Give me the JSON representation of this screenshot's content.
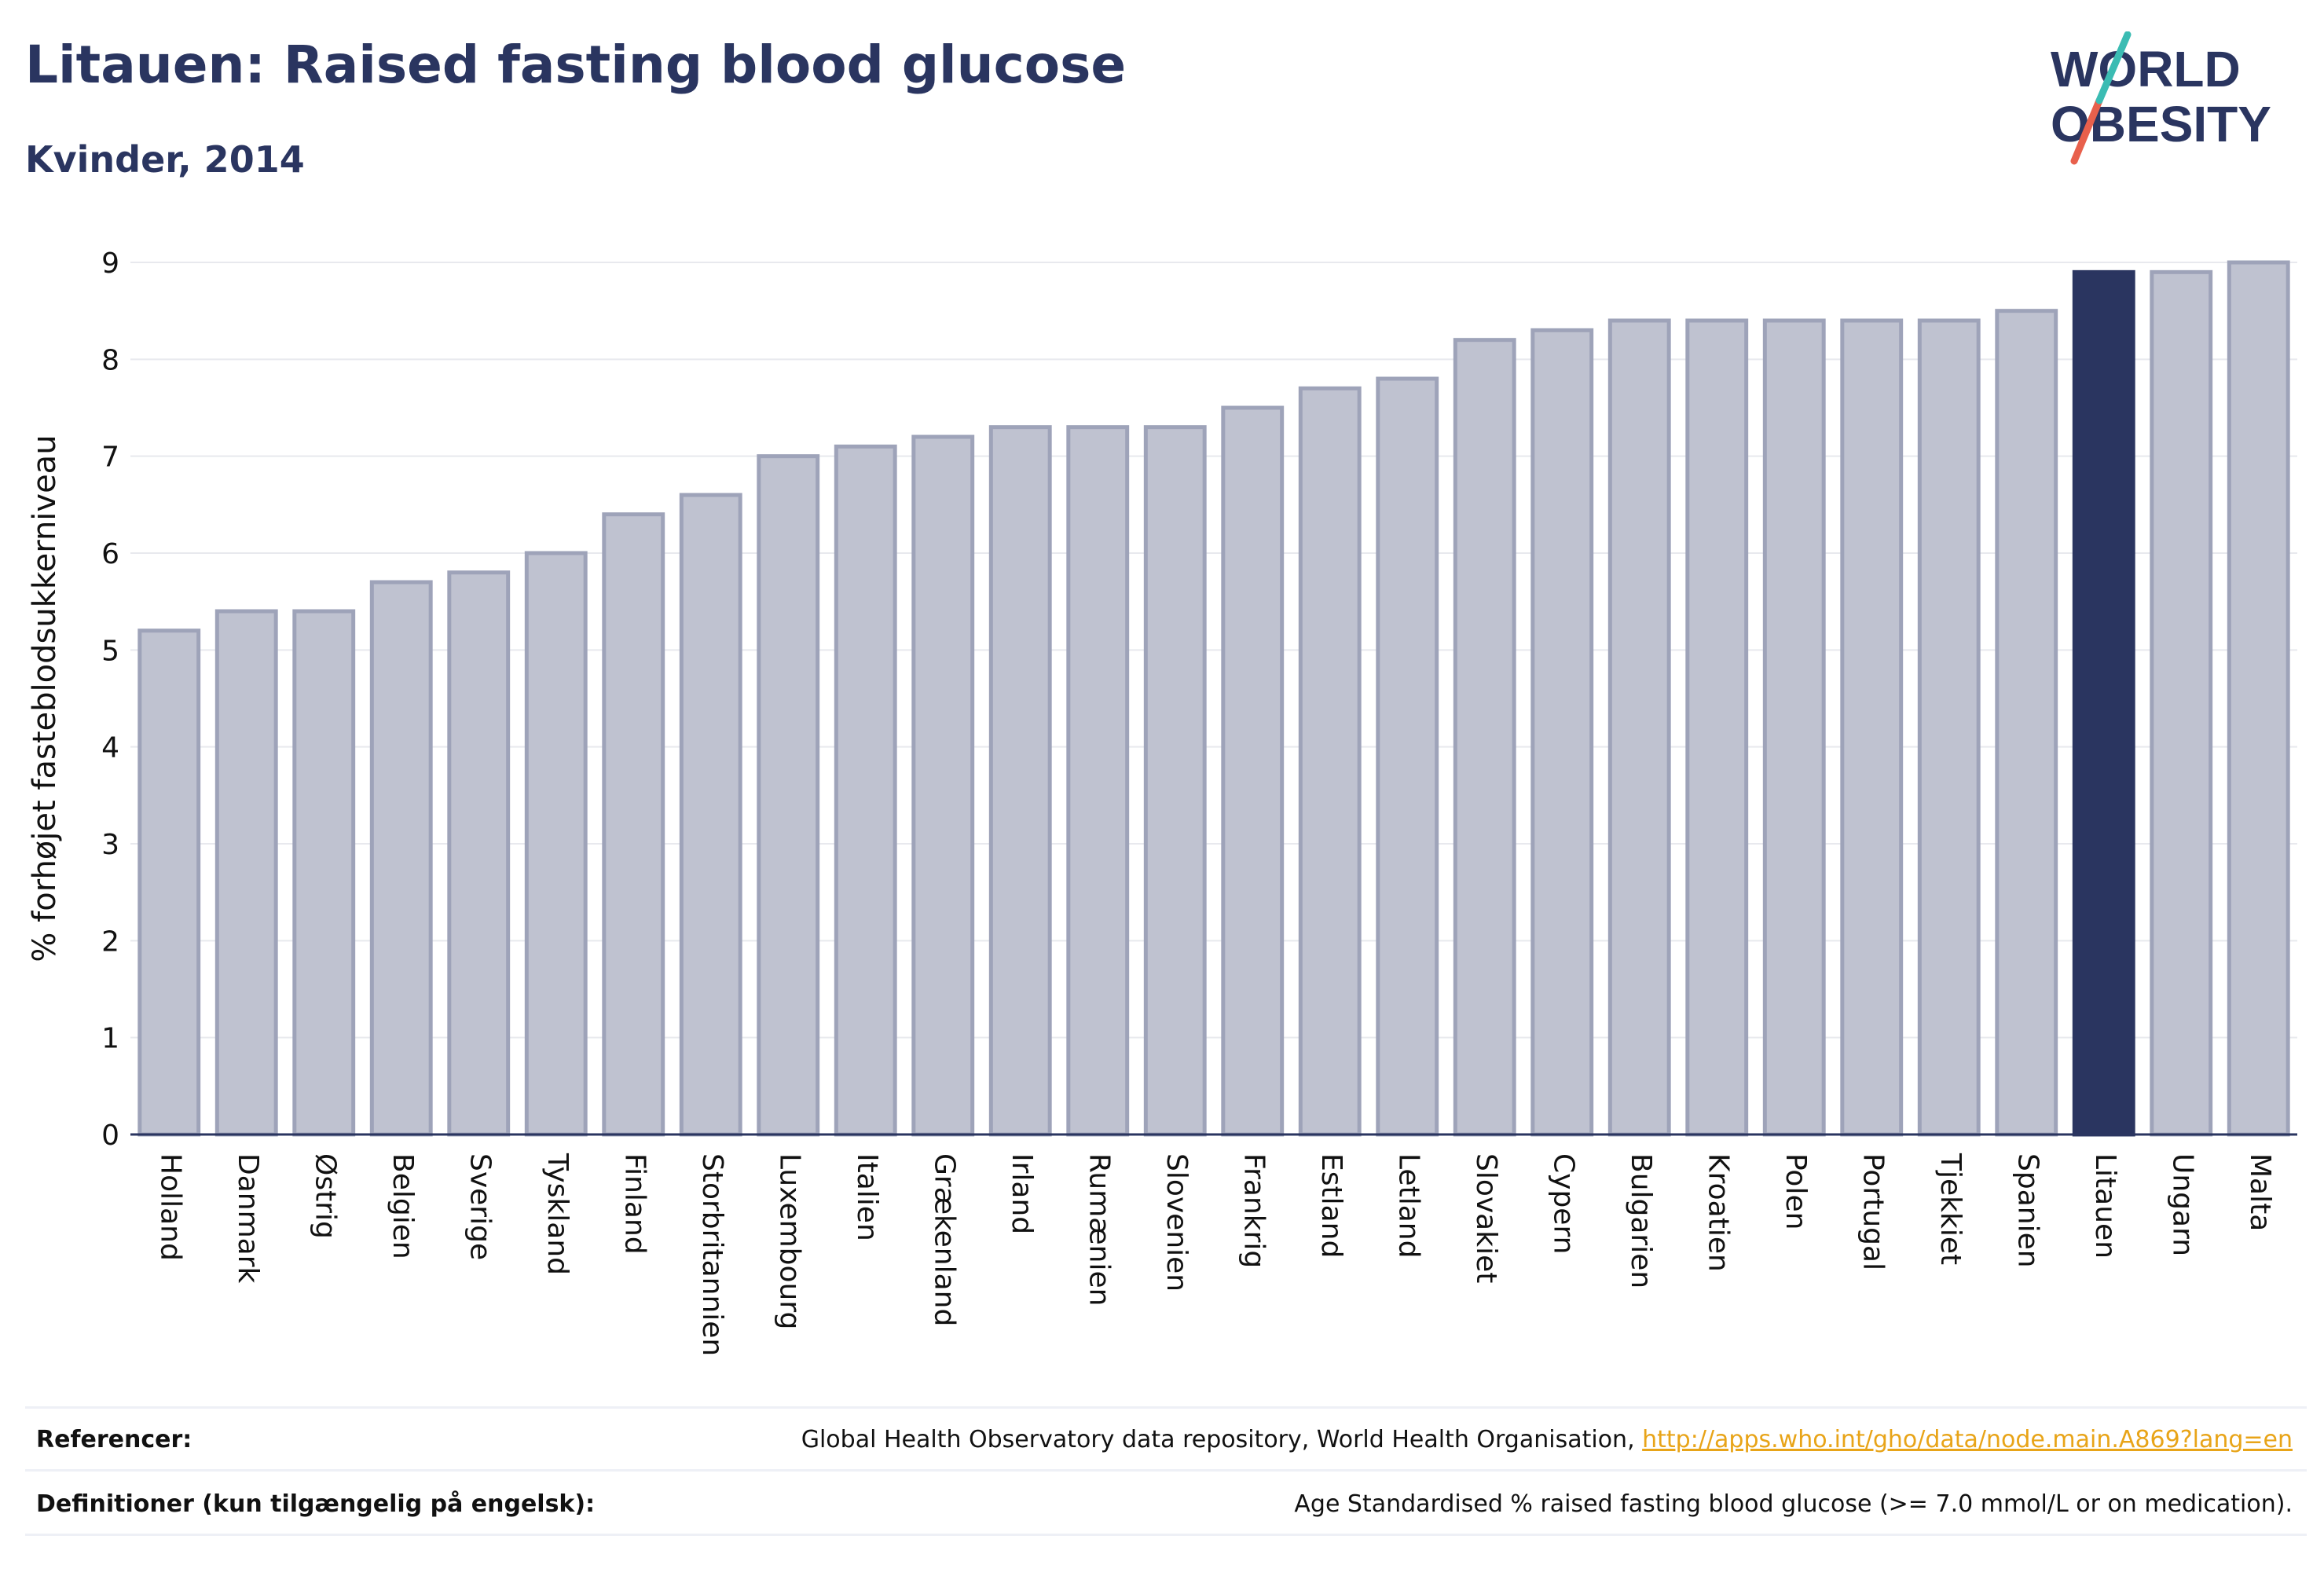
{
  "header": {
    "title": "Litauen: Raised fasting blood glucose",
    "subtitle": "Kvinder, 2014"
  },
  "logo": {
    "line1": "WORLD",
    "line2": "OBESITY",
    "colors": {
      "text": "#2a3560",
      "slash_red": "#e8604c",
      "slash_teal": "#3bbcb3"
    }
  },
  "chart_data": {
    "type": "bar",
    "title": "Litauen: Raised fasting blood glucose",
    "subtitle": "Kvinder, 2014",
    "xlabel": "",
    "ylabel": "% forhøjet fasteblodsukkerniveau",
    "ylim": [
      0,
      9
    ],
    "yticks": [
      0,
      1,
      2,
      3,
      4,
      5,
      6,
      7,
      8,
      9
    ],
    "grid": true,
    "highlight": "Litauen",
    "colors": {
      "bar": "#bfc2d0",
      "bar_edge": "#9ea3b9",
      "highlight": "#2a3560",
      "grid": "#e8e9ee",
      "axis": "#2a3560"
    },
    "categories": [
      "Holland",
      "Danmark",
      "Østrig",
      "Belgien",
      "Sverige",
      "Tyskland",
      "Finland",
      "Storbritannien",
      "Luxembourg",
      "Italien",
      "Grækenland",
      "Irland",
      "Rumænien",
      "Slovenien",
      "Frankrig",
      "Estland",
      "Letland",
      "Slovakiet",
      "Cypern",
      "Bulgarien",
      "Kroatien",
      "Polen",
      "Portugal",
      "Tjekkiet",
      "Spanien",
      "Litauen",
      "Ungarn",
      "Malta"
    ],
    "values": [
      5.2,
      5.4,
      5.4,
      5.7,
      5.8,
      6.0,
      6.4,
      6.6,
      7.0,
      7.1,
      7.2,
      7.3,
      7.3,
      7.3,
      7.5,
      7.7,
      7.8,
      8.2,
      8.3,
      8.4,
      8.4,
      8.4,
      8.4,
      8.4,
      8.5,
      8.9,
      8.9,
      9.0
    ]
  },
  "footer": {
    "references_label": "Referencer:",
    "references_text": "Global Health Observatory data repository, World Health Organisation, ",
    "references_link": "http://apps.who.int/gho/data/node.main.A869?lang=en",
    "definitions_label": "Definitioner (kun tilgængelig på engelsk):",
    "definitions_text": "Age Standardised % raised fasting blood glucose (>= 7.0 mmol/L or on medication)."
  }
}
